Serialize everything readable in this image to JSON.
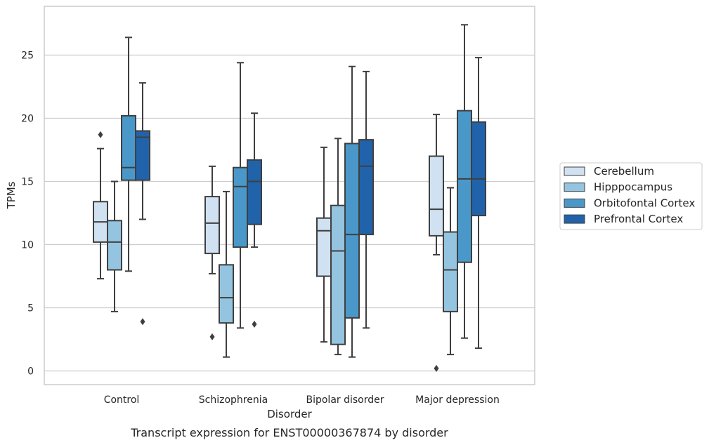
{
  "chart_data": {
    "type": "box",
    "xlabel": "Disorder",
    "ylabel": "TPMs",
    "caption": "Transcript expression for ENST00000367874 by disorder",
    "categories": [
      "Control",
      "Schizophrenia",
      "Bipolar disorder",
      "Major depression"
    ],
    "ylim": [
      -1,
      29
    ],
    "yticks": [
      0,
      5,
      10,
      15,
      20,
      25
    ],
    "grid": "horizontal",
    "legend_position": "right",
    "series": [
      {
        "name": "Cerebellum",
        "color": "#d0e1f2",
        "boxes": [
          {
            "whislo": 7.3,
            "q1": 10.2,
            "med": 11.8,
            "q3": 13.4,
            "whishi": 17.6,
            "fliers": [
              18.7
            ]
          },
          {
            "whislo": 7.7,
            "q1": 9.3,
            "med": 11.7,
            "q3": 13.8,
            "whishi": 16.2,
            "fliers": [
              2.7
            ]
          },
          {
            "whislo": 2.3,
            "q1": 7.5,
            "med": 11.1,
            "q3": 12.1,
            "whishi": 17.7,
            "fliers": []
          },
          {
            "whislo": 9.2,
            "q1": 10.7,
            "med": 12.8,
            "q3": 17.0,
            "whishi": 20.3,
            "fliers": [
              0.2
            ]
          }
        ]
      },
      {
        "name": "Hipppocampus",
        "color": "#94c4df",
        "boxes": [
          {
            "whislo": 4.7,
            "q1": 8.0,
            "med": 10.2,
            "q3": 11.9,
            "whishi": 15.0,
            "fliers": []
          },
          {
            "whislo": 1.1,
            "q1": 3.8,
            "med": 5.8,
            "q3": 8.4,
            "whishi": 14.2,
            "fliers": []
          },
          {
            "whislo": 1.3,
            "q1": 2.1,
            "med": 9.5,
            "q3": 13.1,
            "whishi": 18.4,
            "fliers": []
          },
          {
            "whislo": 1.3,
            "q1": 4.7,
            "med": 8.0,
            "q3": 11.0,
            "whishi": 14.5,
            "fliers": []
          }
        ]
      },
      {
        "name": "Orbitofontal Cortex",
        "color": "#4a98c9",
        "boxes": [
          {
            "whislo": 7.9,
            "q1": 15.1,
            "med": 16.1,
            "q3": 20.2,
            "whishi": 26.4,
            "fliers": []
          },
          {
            "whislo": 3.4,
            "q1": 9.8,
            "med": 14.6,
            "q3": 16.1,
            "whishi": 24.4,
            "fliers": []
          },
          {
            "whislo": 1.1,
            "q1": 4.2,
            "med": 10.8,
            "q3": 18.0,
            "whishi": 24.1,
            "fliers": []
          },
          {
            "whislo": 2.6,
            "q1": 8.6,
            "med": 15.2,
            "q3": 20.6,
            "whishi": 27.4,
            "fliers": []
          }
        ]
      },
      {
        "name": "Prefrontal Cortex",
        "color": "#2163aa",
        "boxes": [
          {
            "whislo": 12.0,
            "q1": 15.1,
            "med": 18.5,
            "q3": 19.0,
            "whishi": 22.8,
            "fliers": [
              3.9
            ]
          },
          {
            "whislo": 9.8,
            "q1": 11.6,
            "med": 15.0,
            "q3": 16.7,
            "whishi": 20.4,
            "fliers": [
              3.7
            ]
          },
          {
            "whislo": 3.4,
            "q1": 10.8,
            "med": 16.2,
            "q3": 18.3,
            "whishi": 23.7,
            "fliers": []
          },
          {
            "whislo": 1.8,
            "q1": 12.3,
            "med": 15.2,
            "q3": 19.7,
            "whishi": 24.8,
            "fliers": []
          }
        ]
      }
    ]
  }
}
